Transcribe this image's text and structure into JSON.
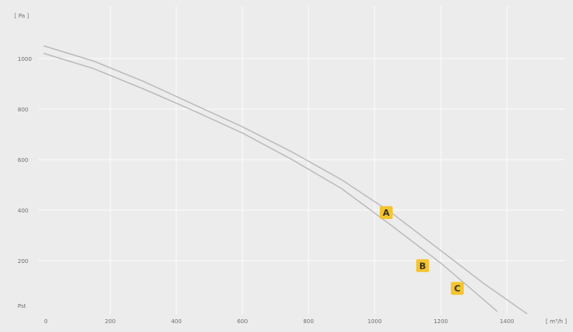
{
  "chart_data": {
    "type": "line",
    "title": "",
    "xlabel": "",
    "ylabel": "",
    "x_unit": "[ m³/h ]",
    "y_unit": "[ Pa ]",
    "y_bottom_label": "Pst",
    "x_origin_label": "0",
    "xlim": [
      0,
      1600
    ],
    "ylim": [
      0,
      1200
    ],
    "x_ticks": [
      {
        "value": 200,
        "label": "200"
      },
      {
        "value": 400,
        "label": "400"
      },
      {
        "value": 600,
        "label": "600"
      },
      {
        "value": 800,
        "label": "800"
      },
      {
        "value": 1000,
        "label": "1000"
      },
      {
        "value": 1200,
        "label": "1200"
      },
      {
        "value": 1400,
        "label": "1400"
      }
    ],
    "y_ticks": [
      {
        "value": 200,
        "label": "200"
      },
      {
        "value": 400,
        "label": "400"
      },
      {
        "value": 600,
        "label": "600"
      },
      {
        "value": 800,
        "label": "800"
      },
      {
        "value": 1000,
        "label": "1000"
      }
    ],
    "grid": true,
    "series": [
      {
        "x": [
          0,
          150,
          300,
          450,
          600,
          750,
          900,
          1050,
          1200,
          1330,
          1460
        ],
        "y": [
          1050,
          990,
          910,
          820,
          730,
          630,
          520,
          390,
          240,
          110,
          -10
        ]
      },
      {
        "x": [
          0,
          150,
          300,
          450,
          600,
          750,
          900,
          1050,
          1200,
          1290,
          1370
        ],
        "y": [
          1020,
          960,
          880,
          795,
          705,
          600,
          485,
          340,
          190,
          90,
          0
        ]
      }
    ],
    "markers": [
      {
        "label": "A",
        "x": 1035,
        "y": 390
      },
      {
        "label": "B",
        "x": 1145,
        "y": 180
      },
      {
        "label": "C",
        "x": 1250,
        "y": 90
      }
    ],
    "colors": {
      "background": "#ececec",
      "grid": "#f7f7f7",
      "curve": "#b8b8b8",
      "marker": "#f4c430"
    }
  }
}
